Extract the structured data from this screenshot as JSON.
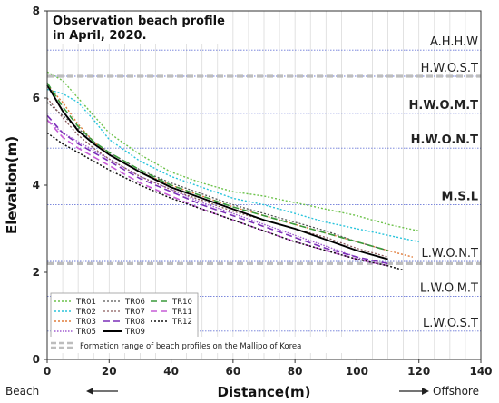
{
  "chart_data": {
    "type": "line",
    "title": "Observation beach profile\nin April, 2020.",
    "xlabel": "Distance(m)",
    "ylabel": "Elevation(m)",
    "xlim": [
      0,
      140
    ],
    "ylim": [
      0,
      8
    ],
    "x_ticks": [
      0,
      20,
      40,
      60,
      80,
      100,
      120,
      140
    ],
    "y_ticks": [
      0,
      2,
      4,
      6,
      8
    ],
    "x_minor_grid_step": 5,
    "direction_labels": {
      "left": "Beach",
      "right": "Offshore"
    },
    "reference_levels": [
      {
        "name": "A.H.H.W",
        "value": 7.1,
        "bold": false
      },
      {
        "name": "H.W.O.S.T",
        "value": 6.5,
        "bold": false
      },
      {
        "name": "H.W.O.M.T",
        "value": 5.65,
        "bold": true
      },
      {
        "name": "H.W.O.N.T",
        "value": 4.85,
        "bold": true
      },
      {
        "name": "M.S.L",
        "value": 3.55,
        "bold": true
      },
      {
        "name": "L.W.O.N.T",
        "value": 2.25,
        "bold": false
      },
      {
        "name": "L.W.O.M.T",
        "value": 1.45,
        "bold": false
      },
      {
        "name": "L.W.O.S.T",
        "value": 0.65,
        "bold": false
      }
    ],
    "formation_range": {
      "label": "Formation range of beach profiles on the Mallipo of Korea",
      "upper": 6.5,
      "lower": 2.2
    },
    "legend_placement": "bottom-left",
    "series": [
      {
        "name": "TR01",
        "color": "#6cc24a",
        "dash": "2,2",
        "width": 1.4,
        "x": [
          0,
          5,
          10,
          15,
          20,
          30,
          40,
          50,
          60,
          70,
          80,
          90,
          100,
          110,
          120
        ],
        "y": [
          6.6,
          6.4,
          6.0,
          5.6,
          5.2,
          4.7,
          4.3,
          4.05,
          3.85,
          3.75,
          3.6,
          3.45,
          3.3,
          3.1,
          2.95
        ]
      },
      {
        "name": "TR02",
        "color": "#29c4dc",
        "dash": "2,2",
        "width": 1.4,
        "x": [
          0,
          5,
          10,
          15,
          20,
          30,
          40,
          50,
          60,
          70,
          80,
          90,
          100,
          110,
          120
        ],
        "y": [
          6.2,
          6.1,
          5.9,
          5.5,
          5.05,
          4.55,
          4.2,
          3.95,
          3.7,
          3.55,
          3.35,
          3.15,
          3.0,
          2.85,
          2.7
        ]
      },
      {
        "name": "TR03",
        "color": "#e07b39",
        "dash": "2,2",
        "width": 1.4,
        "x": [
          0,
          5,
          10,
          15,
          20,
          30,
          40,
          50,
          60,
          70,
          80,
          90,
          100,
          110,
          118
        ],
        "y": [
          6.3,
          5.9,
          5.4,
          5.0,
          4.7,
          4.3,
          4.0,
          3.75,
          3.5,
          3.3,
          3.1,
          2.9,
          2.7,
          2.5,
          2.35
        ]
      },
      {
        "name": "TR05",
        "color": "#a05bd0",
        "dash": "1.5,1.5",
        "width": 1.4,
        "x": [
          0,
          5,
          10,
          15,
          20,
          30,
          40,
          50,
          60,
          70,
          80,
          90,
          100,
          105
        ],
        "y": [
          5.5,
          5.2,
          5.0,
          4.8,
          4.6,
          4.2,
          3.9,
          3.6,
          3.35,
          3.1,
          2.85,
          2.6,
          2.35,
          2.2
        ]
      },
      {
        "name": "TR06",
        "color": "#555555",
        "dash": "2,2",
        "width": 1.3,
        "x": [
          0,
          5,
          10,
          15,
          20,
          30,
          40,
          50,
          60,
          70,
          80,
          90,
          100,
          110
        ],
        "y": [
          5.9,
          5.6,
          5.3,
          5.0,
          4.75,
          4.35,
          4.05,
          3.8,
          3.55,
          3.35,
          3.15,
          2.95,
          2.7,
          2.5
        ]
      },
      {
        "name": "TR07",
        "color": "#8a5a5a",
        "dash": "2,2",
        "width": 1.3,
        "x": [
          0,
          5,
          10,
          15,
          20,
          30,
          40,
          50,
          60,
          70,
          80,
          90,
          100,
          110
        ],
        "y": [
          6.0,
          5.55,
          5.15,
          4.85,
          4.6,
          4.2,
          3.9,
          3.65,
          3.4,
          3.2,
          3.0,
          2.8,
          2.55,
          2.35
        ]
      },
      {
        "name": "TR08",
        "color": "#7b2fb8",
        "dash": "7,4",
        "width": 1.6,
        "x": [
          0,
          5,
          10,
          15,
          20,
          30,
          40,
          50,
          60,
          70,
          80,
          90,
          100,
          110
        ],
        "y": [
          5.6,
          5.2,
          4.95,
          4.75,
          4.55,
          4.15,
          3.85,
          3.55,
          3.3,
          3.05,
          2.8,
          2.55,
          2.35,
          2.2
        ]
      },
      {
        "name": "TR09",
        "color": "#000000",
        "dash": "",
        "width": 1.9,
        "x": [
          0,
          5,
          10,
          15,
          20,
          30,
          40,
          50,
          60,
          70,
          80,
          90,
          100,
          110
        ],
        "y": [
          6.3,
          5.7,
          5.25,
          4.95,
          4.7,
          4.3,
          3.95,
          3.7,
          3.45,
          3.2,
          3.0,
          2.75,
          2.5,
          2.3
        ]
      },
      {
        "name": "TR10",
        "color": "#3a9a3a",
        "dash": "7,4",
        "width": 1.6,
        "x": [
          0,
          5,
          10,
          15,
          20,
          30,
          40,
          50,
          60,
          70,
          80,
          90,
          100,
          110
        ],
        "y": [
          6.35,
          5.8,
          5.35,
          5.0,
          4.75,
          4.35,
          4.0,
          3.75,
          3.5,
          3.3,
          3.1,
          2.9,
          2.7,
          2.5
        ]
      },
      {
        "name": "TR11",
        "color": "#c65bd6",
        "dash": "7,4",
        "width": 1.6,
        "x": [
          0,
          5,
          10,
          15,
          20,
          30,
          40,
          50,
          60,
          70,
          80,
          90,
          100,
          110
        ],
        "y": [
          5.5,
          5.1,
          4.85,
          4.65,
          4.45,
          4.05,
          3.75,
          3.45,
          3.2,
          2.95,
          2.7,
          2.5,
          2.3,
          2.15
        ]
      },
      {
        "name": "TR12",
        "color": "#111111",
        "dash": "2,2",
        "width": 1.5,
        "x": [
          0,
          5,
          10,
          15,
          20,
          30,
          40,
          50,
          60,
          70,
          80,
          90,
          100,
          110,
          115
        ],
        "y": [
          5.2,
          4.95,
          4.75,
          4.55,
          4.35,
          4.0,
          3.7,
          3.45,
          3.2,
          2.95,
          2.7,
          2.5,
          2.3,
          2.15,
          2.05
        ]
      }
    ]
  }
}
